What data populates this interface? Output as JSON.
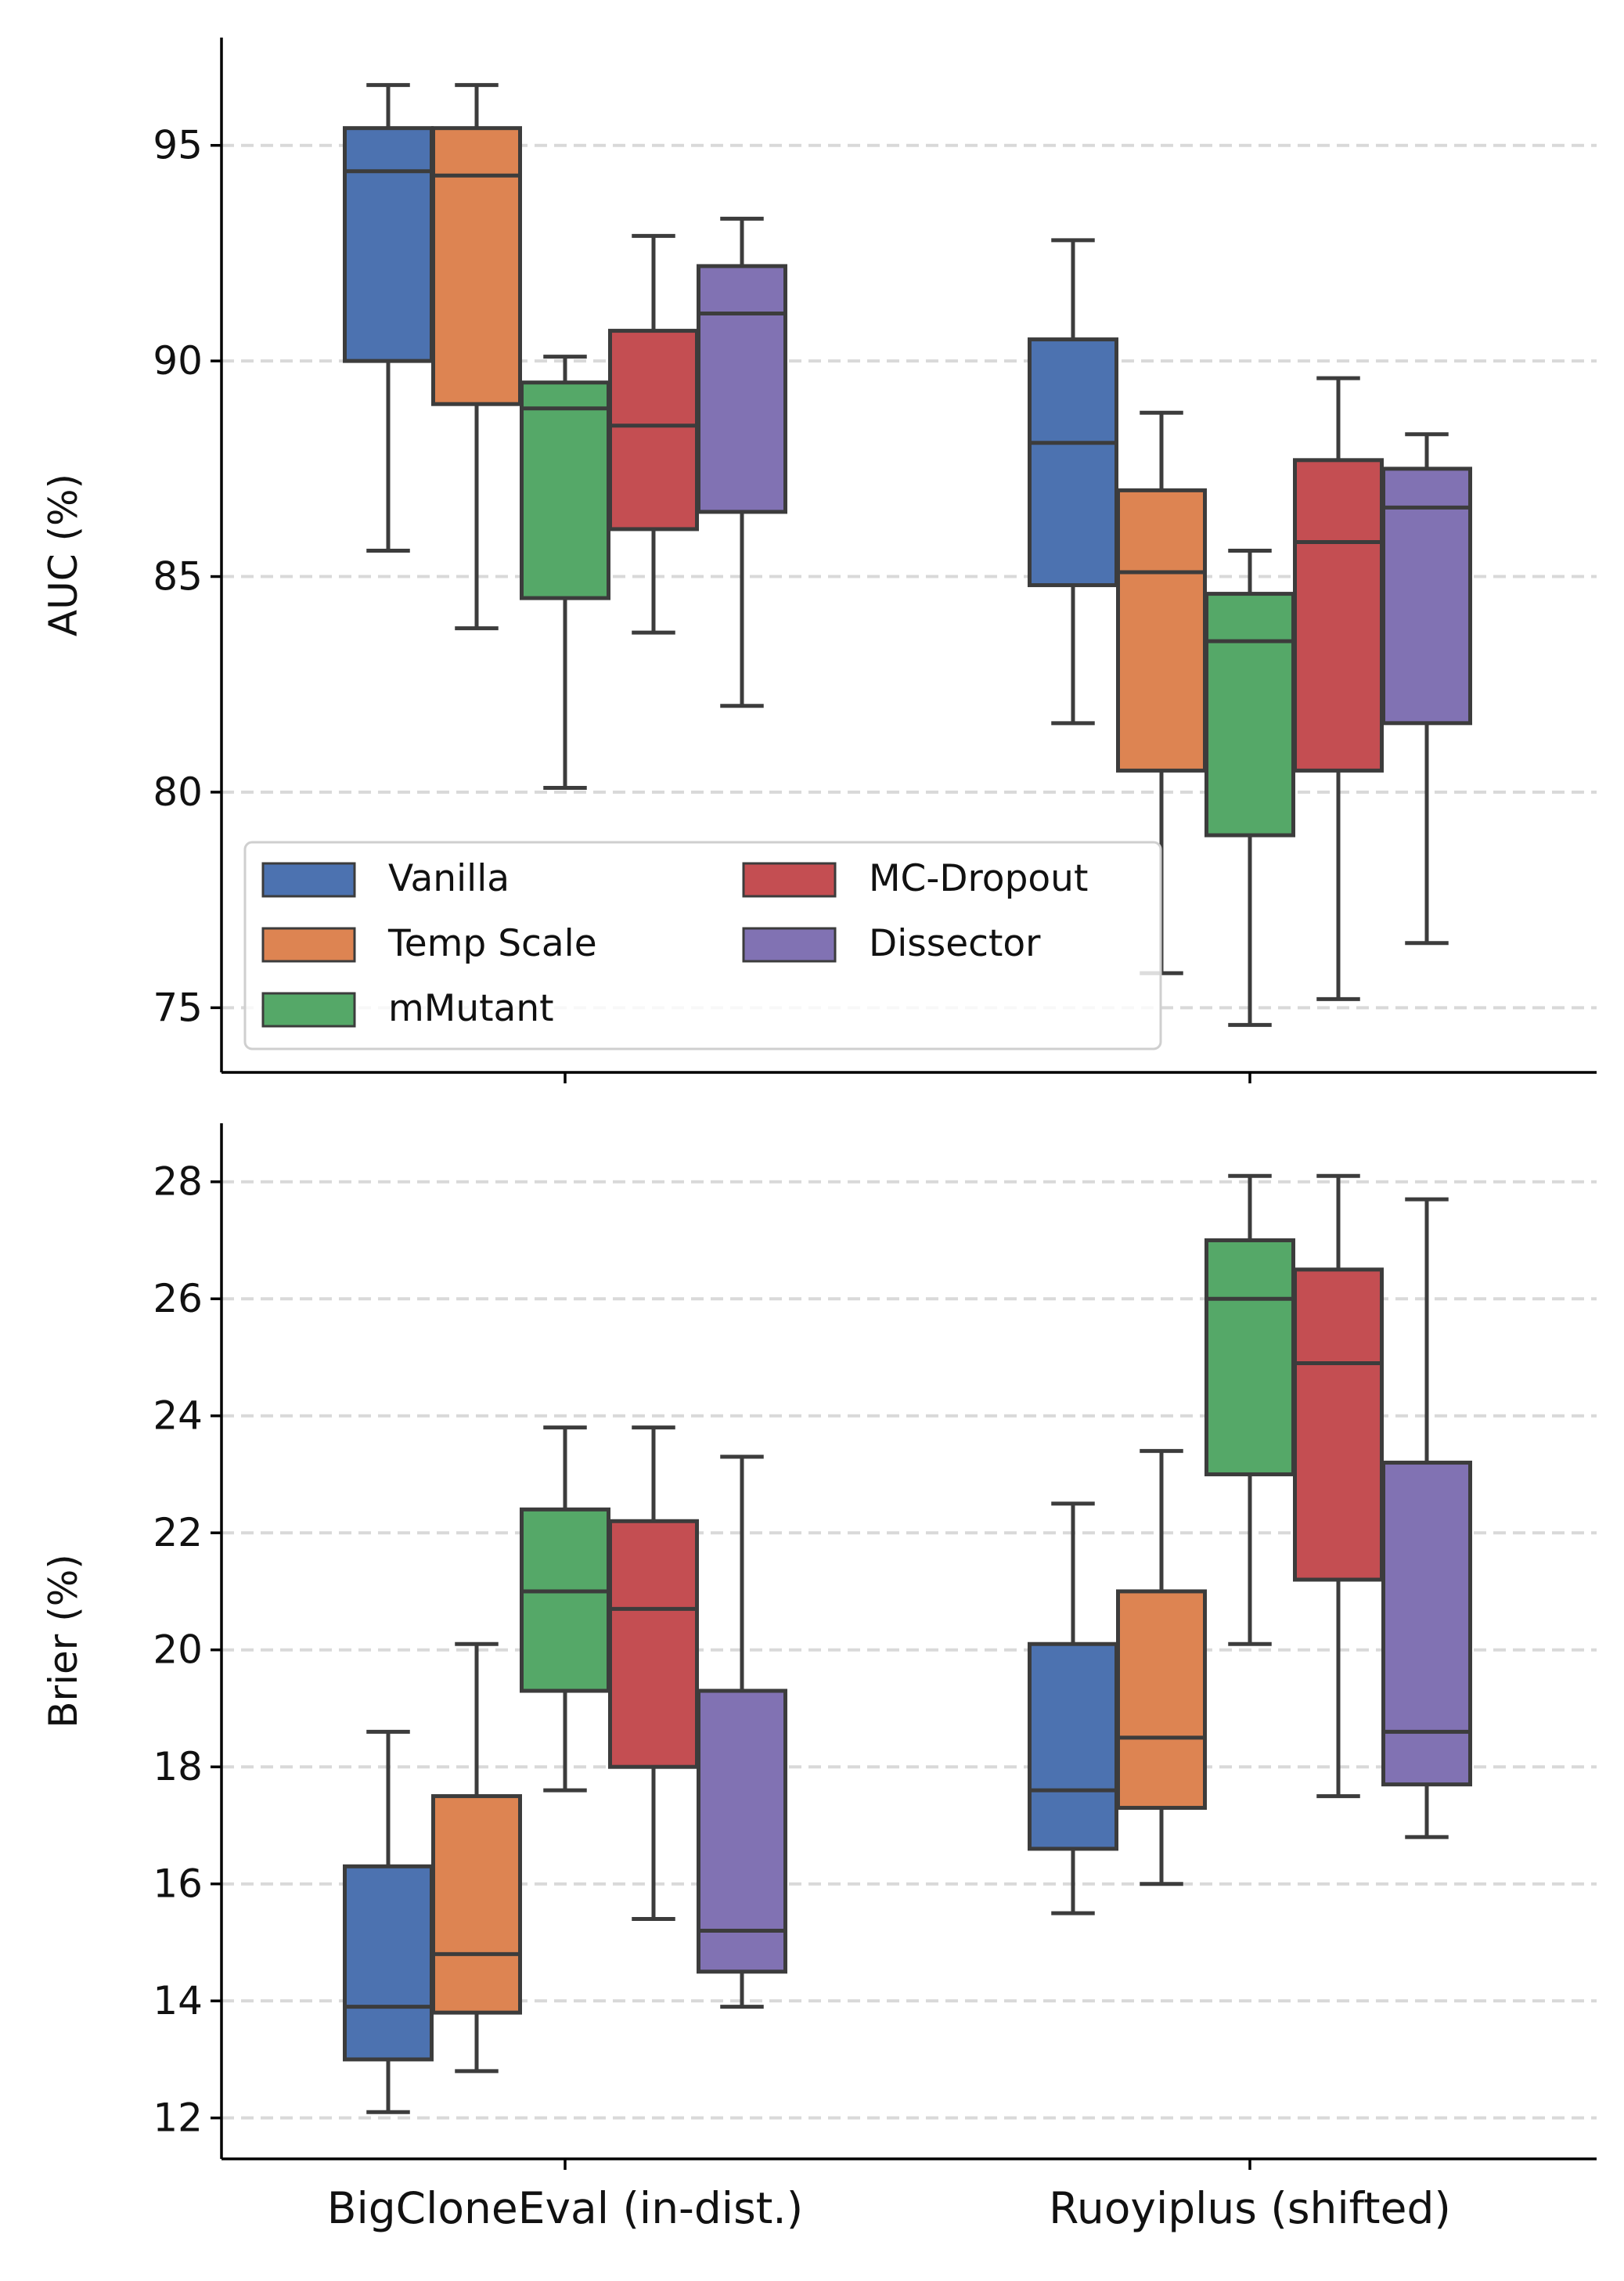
{
  "colors": {
    "Vanilla": "#4c72b0",
    "Temp Scale": "#dd8452",
    "mMutant": "#55a868",
    "MC-Dropout": "#c44e52",
    "Dissector": "#8172b3",
    "line": "#3c3c3c",
    "grid": "#d9d9d9",
    "axis": "#000000"
  },
  "chart_data": [
    {
      "type": "box",
      "ylabel": "AUC (%)",
      "xlabel": "",
      "categories": [
        "BigCloneEval (in-dist.)",
        "Ruoyiplus (shifted)"
      ],
      "ylim": [
        73.5,
        97.5
      ],
      "yticks": [
        75,
        80,
        85,
        90,
        95
      ],
      "grid": "horizontal dashed",
      "legend": {
        "placement": "lower-left",
        "columns": 2,
        "entries": [
          "Vanilla",
          "Temp Scale",
          "mMutant",
          "MC-Dropout",
          "Dissector"
        ]
      },
      "series": [
        {
          "name": "Vanilla",
          "values": [
            {
              "whislo": 85.6,
              "q1": 90.0,
              "med": 94.4,
              "q3": 95.4,
              "whishi": 96.4
            },
            {
              "whislo": 81.6,
              "q1": 84.8,
              "med": 88.1,
              "q3": 90.5,
              "whishi": 92.8
            }
          ]
        },
        {
          "name": "Temp Scale",
          "values": [
            {
              "whislo": 83.8,
              "q1": 89.0,
              "med": 94.3,
              "q3": 95.4,
              "whishi": 96.4
            },
            {
              "whislo": 75.8,
              "q1": 80.5,
              "med": 85.1,
              "q3": 87.0,
              "whishi": 88.8
            }
          ]
        },
        {
          "name": "mMutant",
          "values": [
            {
              "whislo": 80.1,
              "q1": 84.5,
              "med": 88.9,
              "q3": 89.5,
              "whishi": 90.1
            },
            {
              "whislo": 74.6,
              "q1": 79.0,
              "med": 83.5,
              "q3": 84.6,
              "whishi": 85.6
            }
          ]
        },
        {
          "name": "MC-Dropout",
          "values": [
            {
              "whislo": 83.7,
              "q1": 86.1,
              "med": 88.5,
              "q3": 90.7,
              "whishi": 92.9
            },
            {
              "whislo": 75.2,
              "q1": 80.5,
              "med": 85.8,
              "q3": 87.7,
              "whishi": 89.6
            }
          ]
        },
        {
          "name": "Dissector",
          "values": [
            {
              "whislo": 82.0,
              "q1": 86.5,
              "med": 91.1,
              "q3": 92.2,
              "whishi": 93.3
            },
            {
              "whislo": 76.5,
              "q1": 81.6,
              "med": 86.6,
              "q3": 87.5,
              "whishi": 88.3
            }
          ]
        }
      ]
    },
    {
      "type": "box",
      "ylabel": "Brier (%)",
      "xlabel": "",
      "categories": [
        "BigCloneEval (in-dist.)",
        "Ruoyiplus (shifted)"
      ],
      "ylim": [
        11.3,
        29.0
      ],
      "yticks": [
        12,
        14,
        16,
        18,
        20,
        22,
        24,
        26,
        28
      ],
      "grid": "horizontal dashed",
      "series": [
        {
          "name": "Vanilla",
          "values": [
            {
              "whislo": 12.1,
              "q1": 13.0,
              "med": 13.9,
              "q3": 16.3,
              "whishi": 18.6
            },
            {
              "whislo": 15.5,
              "q1": 16.6,
              "med": 17.6,
              "q3": 20.1,
              "whishi": 22.5
            }
          ]
        },
        {
          "name": "Temp Scale",
          "values": [
            {
              "whislo": 12.8,
              "q1": 13.8,
              "med": 14.8,
              "q3": 17.5,
              "whishi": 20.1
            },
            {
              "whislo": 16.0,
              "q1": 17.3,
              "med": 18.5,
              "q3": 21.0,
              "whishi": 23.4
            }
          ]
        },
        {
          "name": "mMutant",
          "values": [
            {
              "whislo": 17.6,
              "q1": 19.3,
              "med": 21.0,
              "q3": 22.4,
              "whishi": 23.8
            },
            {
              "whislo": 20.1,
              "q1": 23.0,
              "med": 26.0,
              "q3": 27.0,
              "whishi": 28.1
            }
          ]
        },
        {
          "name": "MC-Dropout",
          "values": [
            {
              "whislo": 15.4,
              "q1": 18.0,
              "med": 20.7,
              "q3": 22.2,
              "whishi": 23.8
            },
            {
              "whislo": 17.5,
              "q1": 21.2,
              "med": 24.9,
              "q3": 26.5,
              "whishi": 28.1
            }
          ]
        },
        {
          "name": "Dissector",
          "values": [
            {
              "whislo": 13.9,
              "q1": 14.5,
              "med": 15.2,
              "q3": 19.3,
              "whishi": 23.3
            },
            {
              "whislo": 16.8,
              "q1": 17.7,
              "med": 18.6,
              "q3": 23.2,
              "whishi": 27.7
            }
          ]
        }
      ]
    }
  ]
}
